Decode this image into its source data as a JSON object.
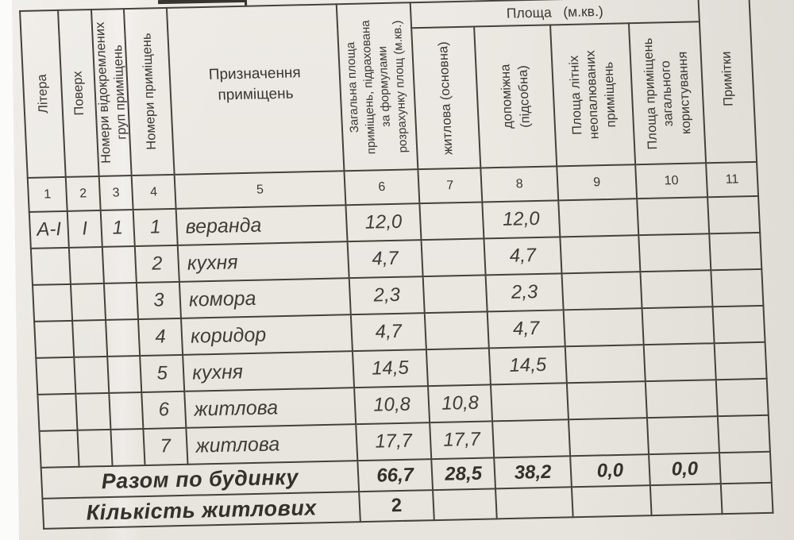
{
  "table": {
    "area_group_header": "Площа   (м.кв.)",
    "columns": [
      {
        "num": "1",
        "lines": [
          "Літера"
        ]
      },
      {
        "num": "2",
        "lines": [
          "Поверх"
        ]
      },
      {
        "num": "3",
        "lines": [
          "Номери відокремлених",
          "груп приміщень"
        ]
      },
      {
        "num": "4",
        "lines": [
          "Номери приміщень"
        ]
      },
      {
        "num": "5",
        "lines": [
          "Призначення",
          "приміщень"
        ]
      },
      {
        "num": "6",
        "lines": [
          "Загальна площа",
          "приміщень, підрахована",
          "за формулами",
          "розрахунку площ (м.кв.)"
        ]
      },
      {
        "num": "7",
        "lines": [
          "житлова (основна)"
        ]
      },
      {
        "num": "8",
        "lines": [
          "допоміжна",
          "(підсобна)"
        ]
      },
      {
        "num": "9",
        "lines": [
          "Площа літніх",
          "неопалюваних",
          "приміщень"
        ]
      },
      {
        "num": "10",
        "lines": [
          "Площа  приміщень",
          "загального",
          "користування"
        ]
      },
      {
        "num": "11",
        "lines": [
          "Примітки"
        ]
      }
    ],
    "rows": [
      {
        "litera": "А-І",
        "floor": "І",
        "group": "1",
        "room": "1",
        "purpose": "веранда",
        "total": "12,0",
        "living": "",
        "auxiliary": "12,0",
        "summer": "",
        "common": "",
        "notes": ""
      },
      {
        "litera": "",
        "floor": "",
        "group": "",
        "room": "2",
        "purpose": "кухня",
        "total": "4,7",
        "living": "",
        "auxiliary": "4,7",
        "summer": "",
        "common": "",
        "notes": ""
      },
      {
        "litera": "",
        "floor": "",
        "group": "",
        "room": "3",
        "purpose": "комора",
        "total": "2,3",
        "living": "",
        "auxiliary": "2,3",
        "summer": "",
        "common": "",
        "notes": ""
      },
      {
        "litera": "",
        "floor": "",
        "group": "",
        "room": "4",
        "purpose": "коридор",
        "total": "4,7",
        "living": "",
        "auxiliary": "4,7",
        "summer": "",
        "common": "",
        "notes": ""
      },
      {
        "litera": "",
        "floor": "",
        "group": "",
        "room": "5",
        "purpose": "кухня",
        "total": "14,5",
        "living": "",
        "auxiliary": "14,5",
        "summer": "",
        "common": "",
        "notes": ""
      },
      {
        "litera": "",
        "floor": "",
        "group": "",
        "room": "6",
        "purpose": "житлова",
        "total": "10,8",
        "living": "10,8",
        "auxiliary": "",
        "summer": "",
        "common": "",
        "notes": ""
      },
      {
        "litera": "",
        "floor": "",
        "group": "",
        "room": "7",
        "purpose": "житлова",
        "total": "17,7",
        "living": "17,7",
        "auxiliary": "",
        "summer": "",
        "common": "",
        "notes": ""
      }
    ],
    "summary": {
      "label": "Разом по будинку",
      "total": "66,7",
      "living": "28,5",
      "auxiliary": "38,2",
      "summer": "0,0",
      "common": "0,0",
      "notes": ""
    },
    "count_row": {
      "label": "Кількість житлових",
      "value": "2"
    }
  }
}
